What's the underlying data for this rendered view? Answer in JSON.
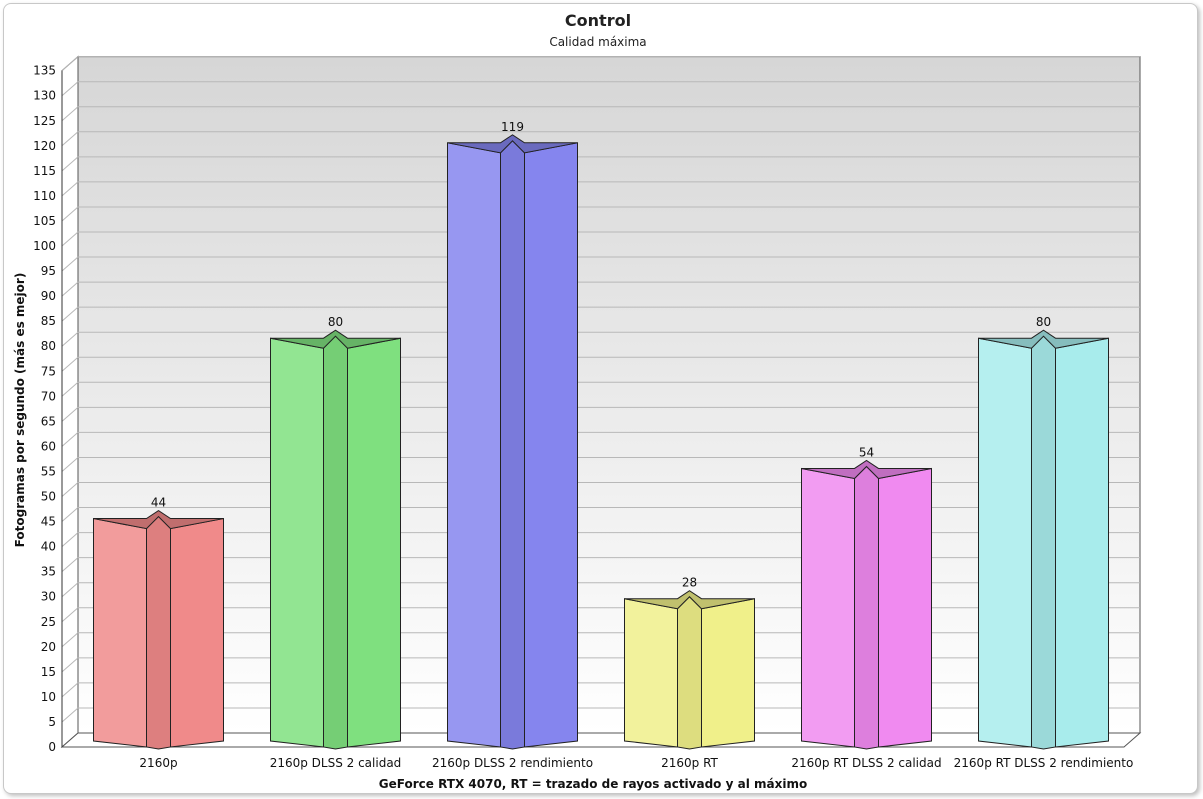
{
  "chart_data": {
    "type": "bar",
    "title": "Control",
    "subtitle": "Calidad máxima",
    "xlabel": "GeForce RTX 4070, RT = trazado de rayos activado y al máximo",
    "ylabel": "Fotogramas por segundo (más es mejor)",
    "ylim": [
      0,
      135
    ],
    "ytick_step": 5,
    "grid": true,
    "categories": [
      "2160p",
      "2160p DLSS 2 calidad",
      "2160p DLSS 2 rendimiento",
      "2160p RT",
      "2160p RT DLSS 2 calidad",
      "2160p RT DLSS 2 rendimiento"
    ],
    "values": [
      44,
      80,
      119,
      28,
      54,
      80
    ],
    "colors": [
      "#f08a8a",
      "#7fe07f",
      "#8585ee",
      "#f0f08a",
      "#f08af0",
      "#a8ecec"
    ]
  }
}
